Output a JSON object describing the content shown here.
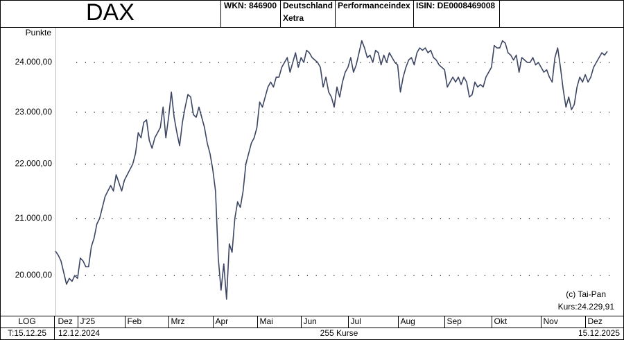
{
  "chart_data": {
    "type": "line",
    "title": "DAX",
    "wkn": "WKN: 846900",
    "country": "Deutschland",
    "exchange": "Xetra",
    "index_type": "Performanceindex",
    "isin": "ISIN: DE0008469008",
    "y_label": "Punkte",
    "copyright": "(c) Tai-Pan",
    "last_price": "Kurs:24.229,91",
    "scale_label": "LOG",
    "date_label": "T:15.12.25",
    "start_date": "12.12.2024",
    "count_label": "255 Kurse",
    "end_date": "15.12.2025",
    "log_scale": true,
    "grid": true,
    "color": "#3c4563",
    "ylim": [
      19323,
      24723
    ],
    "yticks": [
      {
        "value": 20000,
        "label": "20.000,00"
      },
      {
        "value": 21000,
        "label": "21.000,00"
      },
      {
        "value": 22000,
        "label": "22.000,00"
      },
      {
        "value": 23000,
        "label": "23.000,00"
      },
      {
        "value": 24000,
        "label": "24.000,00"
      }
    ],
    "categories": [
      "Dez",
      null,
      null,
      null,
      null,
      null,
      null,
      null,
      "J'25",
      null,
      null,
      null,
      null,
      null,
      null,
      null,
      null,
      null,
      null,
      null,
      null,
      null,
      null,
      null,
      null,
      "Feb",
      null,
      null,
      null,
      null,
      null,
      null,
      null,
      null,
      null,
      null,
      null,
      null,
      null,
      null,
      null,
      "Mrz",
      null,
      null,
      null,
      null,
      null,
      null,
      null,
      null,
      null,
      null,
      null,
      null,
      null,
      null,
      null,
      "Apr",
      null,
      null,
      null,
      null,
      null,
      null,
      null,
      null,
      null,
      null,
      null,
      null,
      null,
      null,
      null,
      "Mai",
      null,
      null,
      null,
      null,
      null,
      null,
      null,
      null,
      null,
      null,
      null,
      null,
      null,
      null,
      null,
      "Jun",
      null,
      null,
      null,
      null,
      null,
      null,
      null,
      null,
      null,
      null,
      null,
      null,
      null,
      null,
      null,
      null,
      "Jul",
      null,
      null,
      null,
      null,
      null,
      null,
      null,
      null,
      null,
      null,
      null,
      null,
      null,
      null,
      null,
      null,
      null,
      "Aug",
      null,
      null,
      null,
      null,
      null,
      null,
      null,
      null,
      null,
      null,
      null,
      null,
      null,
      null,
      null,
      null,
      "Sep",
      null,
      null,
      null,
      null,
      null,
      null,
      null,
      null,
      null,
      null,
      null,
      null,
      null,
      null,
      null,
      null,
      "Okt",
      null,
      null,
      null,
      null,
      null,
      null,
      null,
      null,
      null,
      null,
      null,
      null,
      null,
      null,
      null,
      null,
      null,
      "Nov",
      null,
      null,
      null,
      null,
      null,
      null,
      null,
      null,
      null,
      null,
      null,
      null,
      null,
      null,
      null,
      "Dez",
      null,
      null,
      null,
      null,
      null,
      null,
      null,
      null
    ],
    "values": [
      20420,
      20350,
      20250,
      20050,
      19850,
      19950,
      19900,
      20000,
      19950,
      20300,
      20250,
      20150,
      20150,
      20500,
      20650,
      20900,
      21000,
      21200,
      21400,
      21500,
      21600,
      21500,
      21800,
      21650,
      21500,
      21700,
      21800,
      21900,
      22000,
      22200,
      22600,
      22500,
      22800,
      22850,
      22450,
      22300,
      22500,
      22600,
      22700,
      23100,
      22500,
      22900,
      23400,
      22900,
      22600,
      22350,
      22800,
      23100,
      23350,
      23300,
      22950,
      22900,
      23100,
      22900,
      22700,
      22400,
      22200,
      21900,
      21500,
      20300,
      19750,
      20200,
      19600,
      20550,
      20400,
      21000,
      21300,
      21200,
      21500,
      22000,
      22200,
      22400,
      22500,
      22700,
      23200,
      23100,
      23300,
      23500,
      23600,
      23500,
      23700,
      23700,
      23900,
      24000,
      24100,
      23800,
      24000,
      24200,
      23900,
      24100,
      24000,
      24250,
      24200,
      24100,
      24050,
      24000,
      23900,
      23500,
      23700,
      23400,
      23300,
      23100,
      23500,
      23300,
      23600,
      23800,
      23900,
      24100,
      23800,
      23950,
      24200,
      24450,
      24300,
      24100,
      24150,
      24000,
      24250,
      24200,
      23950,
      24150,
      24000,
      24200,
      24100,
      24000,
      23950,
      23400,
      23700,
      23900,
      24050,
      24100,
      23950,
      24200,
      24300,
      24250,
      24300,
      24200,
      24250,
      24100,
      24050,
      23950,
      23900,
      23850,
      23500,
      23600,
      23700,
      23600,
      23700,
      23550,
      23700,
      23600,
      23300,
      23350,
      23600,
      23500,
      23550,
      23500,
      23700,
      23800,
      23900,
      24350,
      24300,
      24300,
      24450,
      24400,
      24200,
      24150,
      24050,
      24150,
      23800,
      24100,
      24050,
      24000,
      24000,
      24100,
      23950,
      24000,
      23900,
      23800,
      23850,
      23700,
      23600,
      24100,
      24300,
      23900,
      23450,
      23100,
      23300,
      23050,
      23150,
      23500,
      23700,
      23600,
      23750,
      23600,
      23700,
      23900,
      24000,
      24100,
      24200,
      24150,
      24229.91
    ]
  }
}
